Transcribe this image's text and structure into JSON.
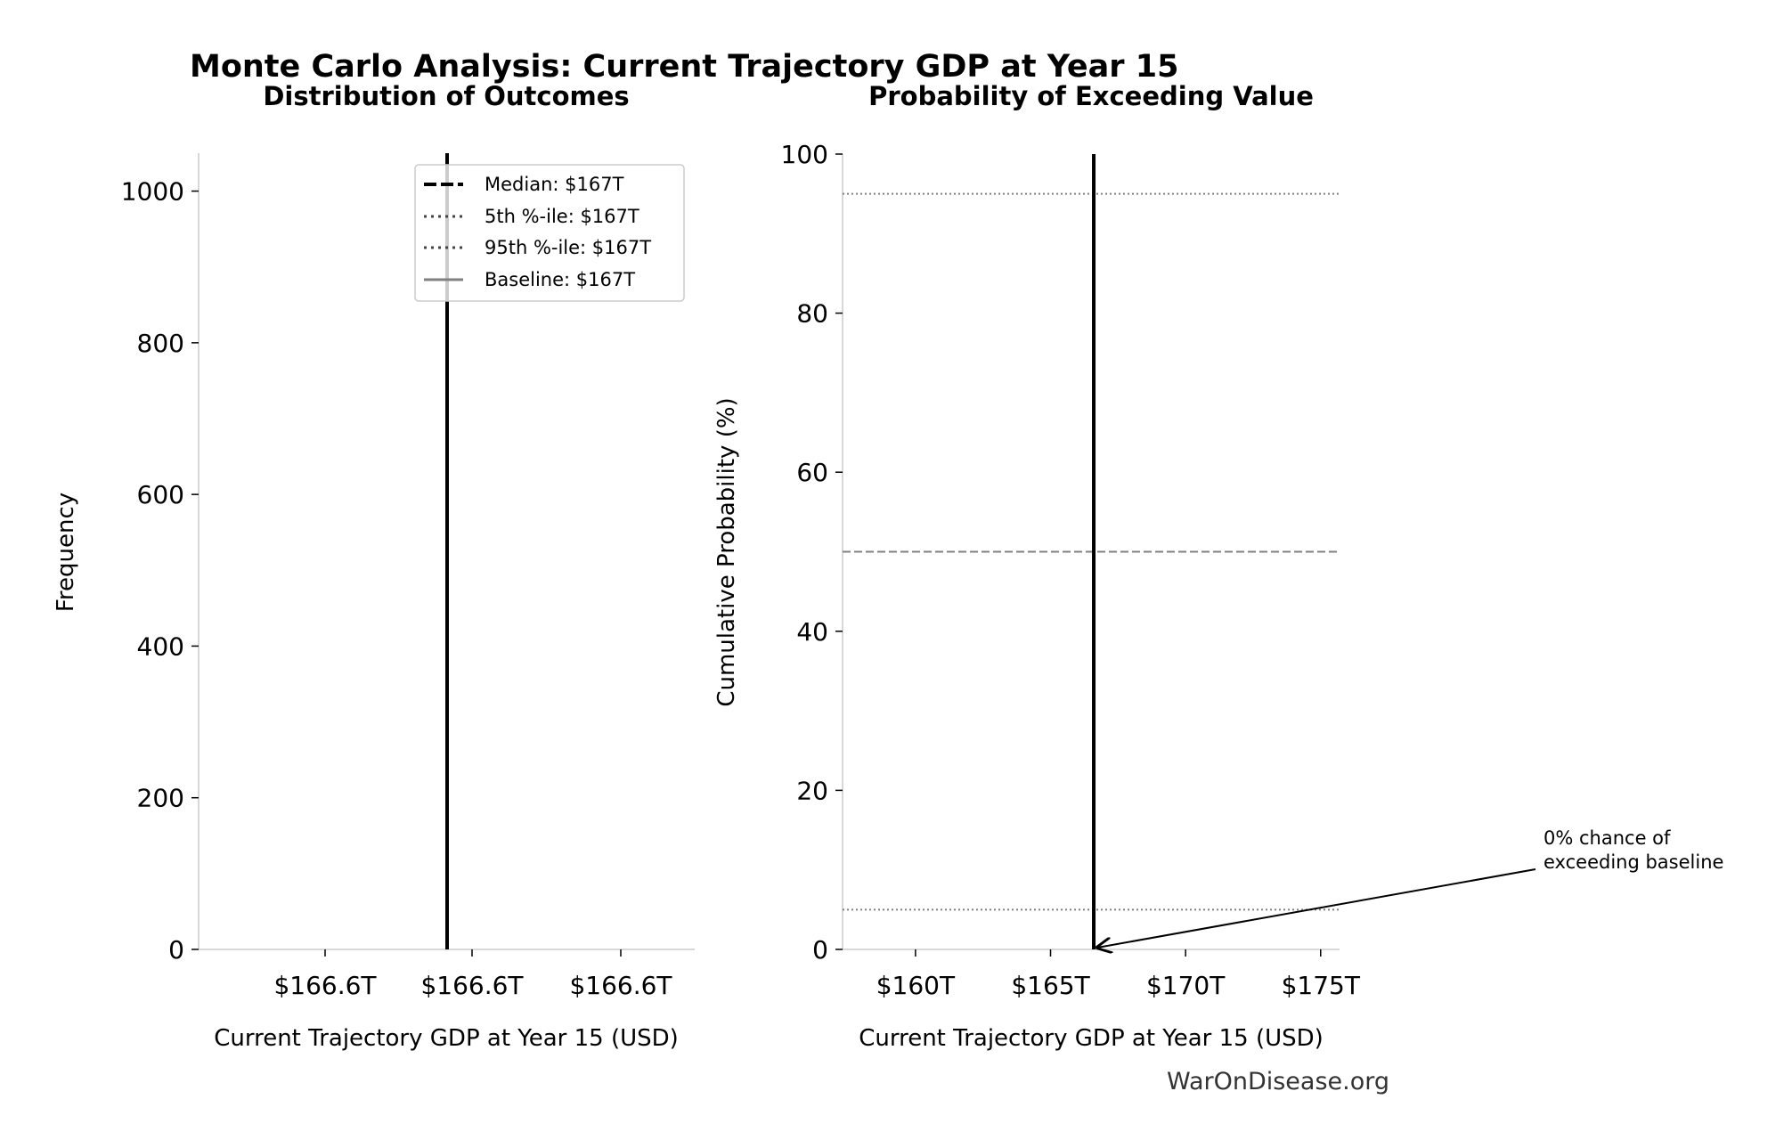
{
  "title": "Monte Carlo Analysis: Current Trajectory GDP at Year 15",
  "watermark": "WarOnDisease.org",
  "colors": {
    "line": "#000000",
    "reference": "#808080",
    "dotted": "#444444",
    "axis": "#cccccc"
  },
  "chart_data": [
    {
      "type": "bar",
      "title": "Distribution of Outcomes",
      "xlabel": "Current Trajectory GDP at Year 15 (USD)",
      "ylabel": "Frequency",
      "ylim": [
        0,
        1050
      ],
      "yticks": [
        0,
        200,
        400,
        600,
        800,
        1000
      ],
      "xtick_labels": [
        "$166.6T",
        "$166.6T",
        "$166.6T"
      ],
      "grid": false,
      "legend": {
        "placement": "top-right",
        "entries": [
          {
            "label": "Median: $167T",
            "style": "dashed"
          },
          {
            "label": "5th %-ile: $167T",
            "style": "dotted"
          },
          {
            "label": "95th %-ile: $167T",
            "style": "dotted"
          },
          {
            "label": "Baseline: $167T",
            "style": "solid-gray"
          }
        ]
      },
      "vertical_lines": [
        {
          "name": "Median",
          "x": 167
        },
        {
          "name": "5th %-ile",
          "x": 167
        },
        {
          "name": "95th %-ile",
          "x": 167
        },
        {
          "name": "Baseline",
          "x": 167
        }
      ]
    },
    {
      "type": "line",
      "title": "Probability of Exceeding Value",
      "xlabel": "Current Trajectory GDP at Year 15 (USD)",
      "ylabel": "Cumulative Probability (%)",
      "xlim": [
        157.3,
        175.7
      ],
      "ylim": [
        0,
        100
      ],
      "xticks": [
        160,
        165,
        170,
        175
      ],
      "xtick_labels": [
        "$160T",
        "$165T",
        "$170T",
        "$175T"
      ],
      "yticks": [
        0,
        20,
        40,
        60,
        80,
        100
      ],
      "grid": false,
      "baseline_x": 166.6,
      "horizontal_lines": [
        {
          "y": 95,
          "style": "dotted"
        },
        {
          "y": 50,
          "style": "dashed"
        },
        {
          "y": 5,
          "style": "dotted"
        }
      ],
      "annotation": {
        "lines": [
          "0% chance of",
          "exceeding baseline"
        ],
        "x": 166.6,
        "y": 0
      }
    }
  ]
}
